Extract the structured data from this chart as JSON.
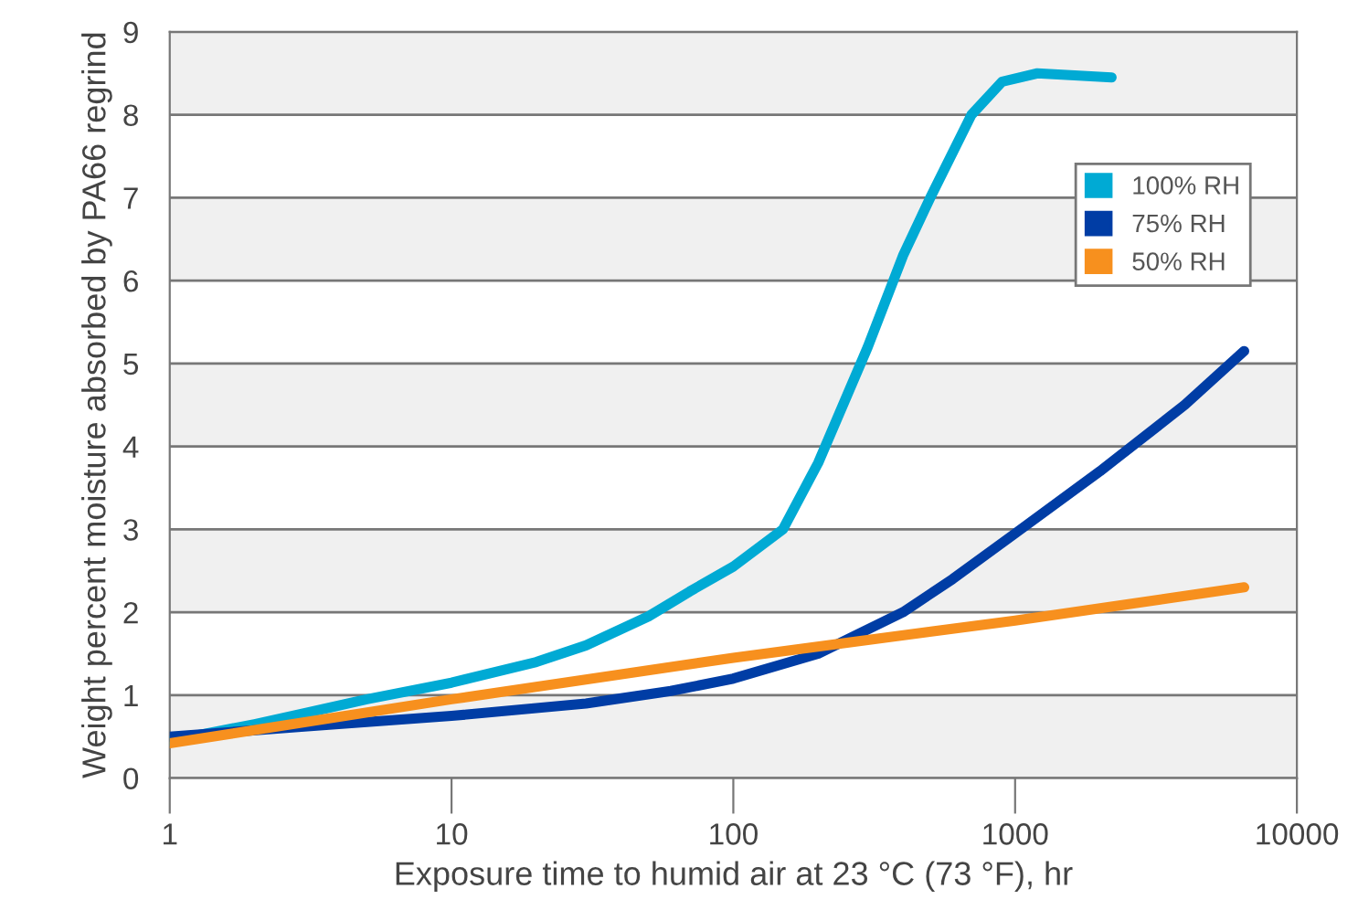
{
  "chart_data": {
    "type": "line",
    "xlabel": "Exposure time to humid air at 23 °C (73 °F), hr",
    "ylabel": "Weight percent moisture absorbed by PA66 regrind",
    "log": "x",
    "xlim": [
      1,
      10000
    ],
    "xticks": [
      1,
      10,
      100,
      1000,
      10000
    ],
    "ylim": [
      0,
      9
    ],
    "yticks": [
      0,
      1,
      2,
      3,
      4,
      5,
      6,
      7,
      8,
      9
    ],
    "grid": "y",
    "legend": "top right",
    "marker": "none",
    "line_style": "solid",
    "bands": [
      {
        "axis": "y",
        "from": 0,
        "to": 1,
        "color": "#f0f0f0"
      },
      {
        "axis": "y",
        "from": 2,
        "to": 3,
        "color": "#f0f0f0"
      },
      {
        "axis": "y",
        "from": 4,
        "to": 5,
        "color": "#f0f0f0"
      },
      {
        "axis": "y",
        "from": 6,
        "to": 7,
        "color": "#f0f0f0"
      },
      {
        "axis": "y",
        "from": 8,
        "to": 9,
        "color": "#f0f0f0"
      }
    ],
    "series": [
      {
        "name": "100% RH",
        "color": "#00aad4",
        "x": [
          1,
          2,
          3,
          5,
          10,
          20,
          30,
          50,
          70,
          100,
          150,
          200,
          300,
          400,
          500,
          700,
          900,
          1200,
          2200
        ],
        "values": [
          0.45,
          0.65,
          0.78,
          0.95,
          1.15,
          1.4,
          1.6,
          1.95,
          2.25,
          2.55,
          3.0,
          3.8,
          5.2,
          6.3,
          7.0,
          8.0,
          8.4,
          8.5,
          8.45
        ]
      },
      {
        "name": "75% RH",
        "color": "#003da5",
        "x": [
          1,
          3,
          10,
          30,
          60,
          100,
          200,
          400,
          600,
          1000,
          2000,
          4000,
          6500
        ],
        "values": [
          0.5,
          0.62,
          0.75,
          0.9,
          1.05,
          1.2,
          1.5,
          2.0,
          2.4,
          2.95,
          3.7,
          4.5,
          5.15
        ]
      },
      {
        "name": "50% RH",
        "color": "#f7901e",
        "x": [
          1,
          10,
          100,
          1000,
          6500
        ],
        "values": [
          0.42,
          0.95,
          1.45,
          1.9,
          2.3
        ]
      }
    ]
  }
}
